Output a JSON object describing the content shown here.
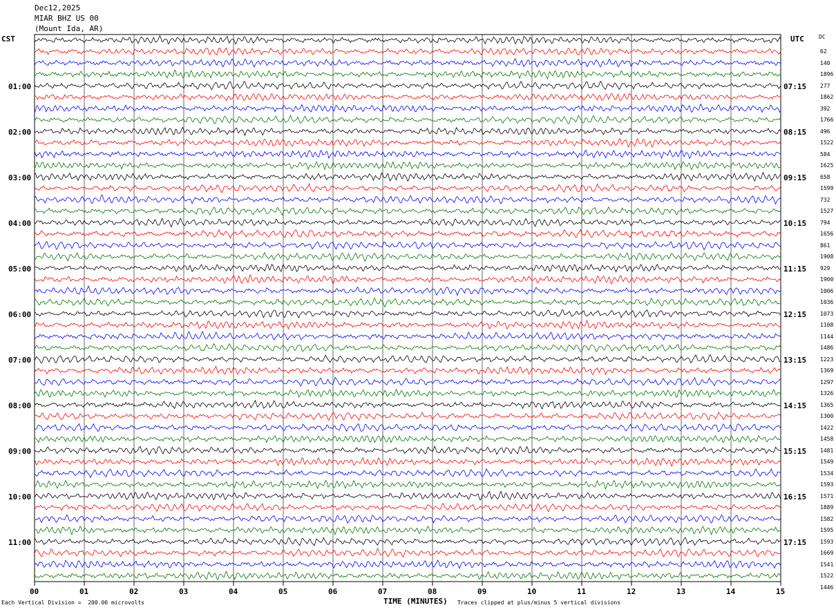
{
  "header": {
    "date": "Dec12,2025",
    "station": "MIAR BHZ US 00",
    "location": "(Mount Ida, AR)"
  },
  "left_zone": "CST",
  "right_zone": "UTC",
  "dc_label": "DC",
  "left_times": [
    "01:00",
    "02:00",
    "03:00",
    "04:00",
    "05:00",
    "06:00",
    "07:00",
    "08:00",
    "09:00",
    "10:00",
    "11:00"
  ],
  "right_times": [
    "07:15",
    "08:15",
    "09:15",
    "10:15",
    "11:15",
    "12:15",
    "13:15",
    "14:15",
    "15:15",
    "16:15",
    "17:15"
  ],
  "x_ticks": [
    "00",
    "01",
    "02",
    "03",
    "04",
    "05",
    "06",
    "07",
    "08",
    "09",
    "10",
    "11",
    "12",
    "13",
    "14",
    "15"
  ],
  "x_axis_label": "TIME (MINUTES)",
  "footer_left": "Each Vertical Division =  200.00 microvolts",
  "footer_right": "Traces clipped at plus/minus 5 vertical divisions",
  "dc_offsets": [
    "62",
    "140",
    "1896",
    "277",
    "1862",
    "392",
    "1766",
    "496",
    "1522",
    "584",
    "1625",
    "658",
    "1599",
    "732",
    "1527",
    "794",
    "1656",
    "861",
    "1908",
    "929",
    "1900",
    "1006",
    "1036",
    "1073",
    "1108",
    "1144",
    "1486",
    "1223",
    "1369",
    "1297",
    "1326",
    "1365",
    "1300",
    "1422",
    "1458",
    "1481",
    "1549",
    "1534",
    "1593",
    "1571",
    "1889",
    "1582",
    "1595",
    "1593",
    "1669",
    "1541",
    "1522",
    "1446"
  ],
  "trace_colors": [
    "#000000",
    "#ff0000",
    "#0000ff",
    "#007700"
  ],
  "chart_data": {
    "type": "line",
    "title": "",
    "xlabel": "TIME (MINUTES)",
    "ylabel": "",
    "xlim": [
      0,
      15
    ],
    "traces_per_hour": 4,
    "trace_count": 48,
    "grid": "vertical lines each minute"
  }
}
